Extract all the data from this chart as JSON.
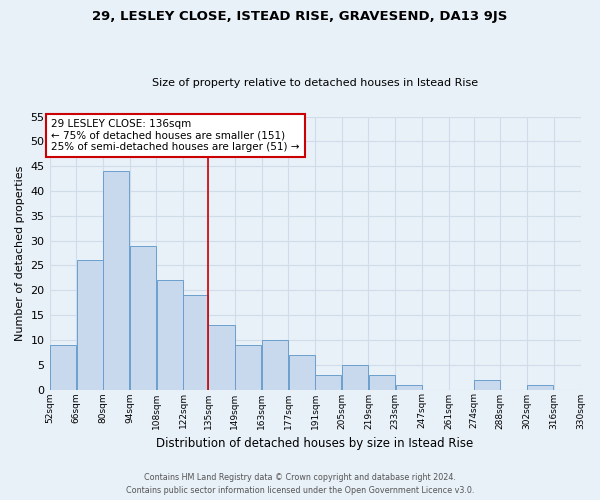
{
  "title": "29, LESLEY CLOSE, ISTEAD RISE, GRAVESEND, DA13 9JS",
  "subtitle": "Size of property relative to detached houses in Istead Rise",
  "xlabel": "Distribution of detached houses by size in Istead Rise",
  "ylabel": "Number of detached properties",
  "bar_edges": [
    52,
    66,
    80,
    94,
    108,
    122,
    135,
    149,
    163,
    177,
    191,
    205,
    219,
    233,
    247,
    261,
    274,
    288,
    302,
    316,
    330
  ],
  "bar_heights": [
    9,
    26,
    44,
    29,
    22,
    19,
    13,
    9,
    10,
    7,
    3,
    5,
    3,
    1,
    0,
    0,
    2,
    0,
    1,
    0
  ],
  "bar_color": "#c9d9ed",
  "bar_edge_color": "#6b9fcd",
  "vline_x": 135,
  "vline_color": "#cc0000",
  "annotation_text": "29 LESLEY CLOSE: 136sqm\n← 75% of detached houses are smaller (151)\n25% of semi-detached houses are larger (51) →",
  "annotation_box_color": "#ffffff",
  "annotation_box_edge_color": "#cc0000",
  "ylim": [
    0,
    55
  ],
  "yticks": [
    0,
    5,
    10,
    15,
    20,
    25,
    30,
    35,
    40,
    45,
    50,
    55
  ],
  "tick_labels": [
    "52sqm",
    "66sqm",
    "80sqm",
    "94sqm",
    "108sqm",
    "122sqm",
    "135sqm",
    "149sqm",
    "163sqm",
    "177sqm",
    "191sqm",
    "205sqm",
    "219sqm",
    "233sqm",
    "247sqm",
    "261sqm",
    "274sqm",
    "288sqm",
    "302sqm",
    "316sqm",
    "330sqm"
  ],
  "grid_color": "#d0dce8",
  "bg_color": "#e8f0f8",
  "footer1": "Contains HM Land Registry data © Crown copyright and database right 2024.",
  "footer2": "Contains public sector information licensed under the Open Government Licence v3.0."
}
